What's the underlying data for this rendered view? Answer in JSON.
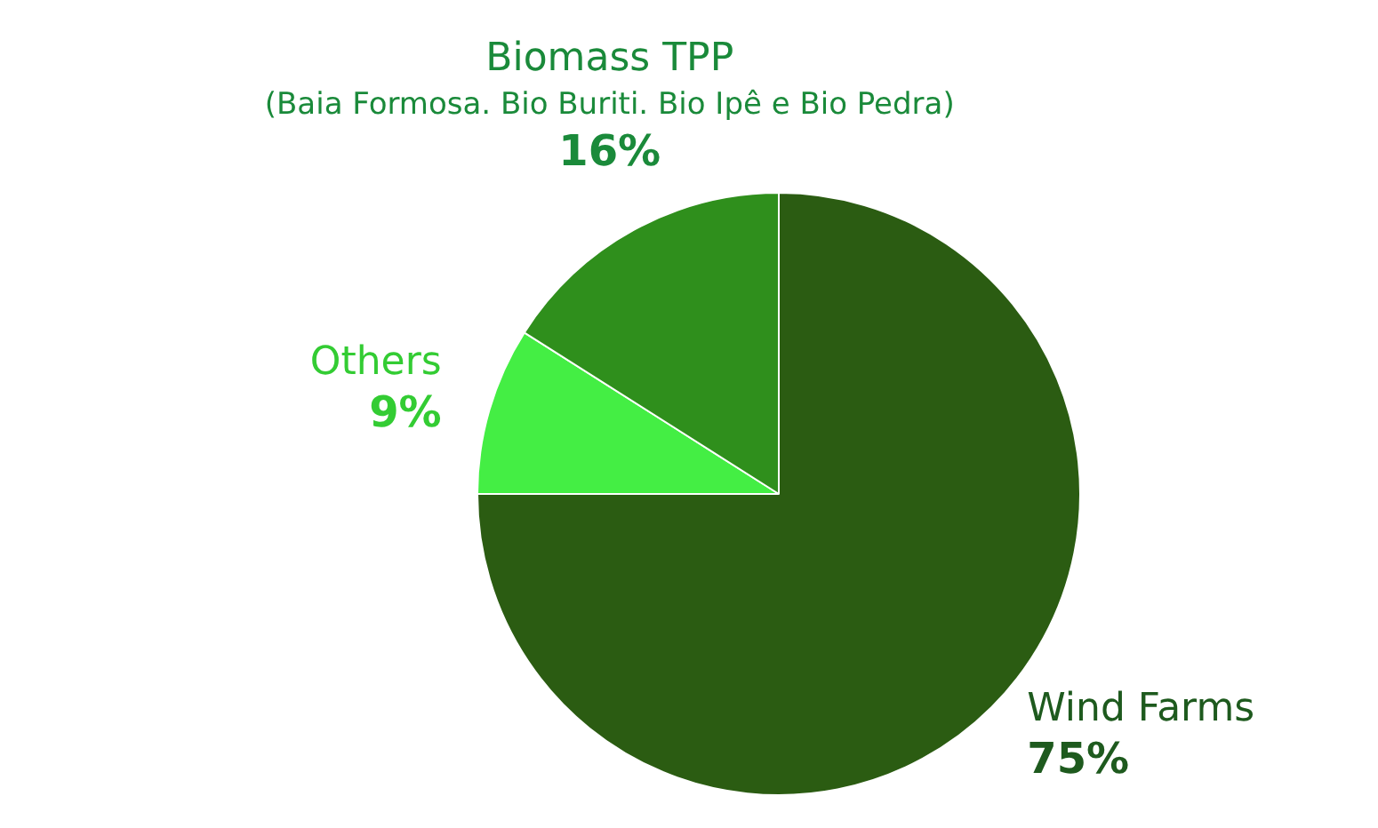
{
  "chart_data": {
    "type": "pie",
    "categories": [
      "Wind Farms",
      "Others",
      "Biomass TPP\n(Baia Formosa. Bio Buriti. Bio Ipê e Bio Pedra)"
    ],
    "values": [
      75,
      9,
      16
    ],
    "colors": [
      "#2b5c12",
      "#44ee44",
      "#2f8f1c"
    ],
    "value_labels": [
      "75%",
      "9%",
      "16%"
    ],
    "legend": false
  }
}
